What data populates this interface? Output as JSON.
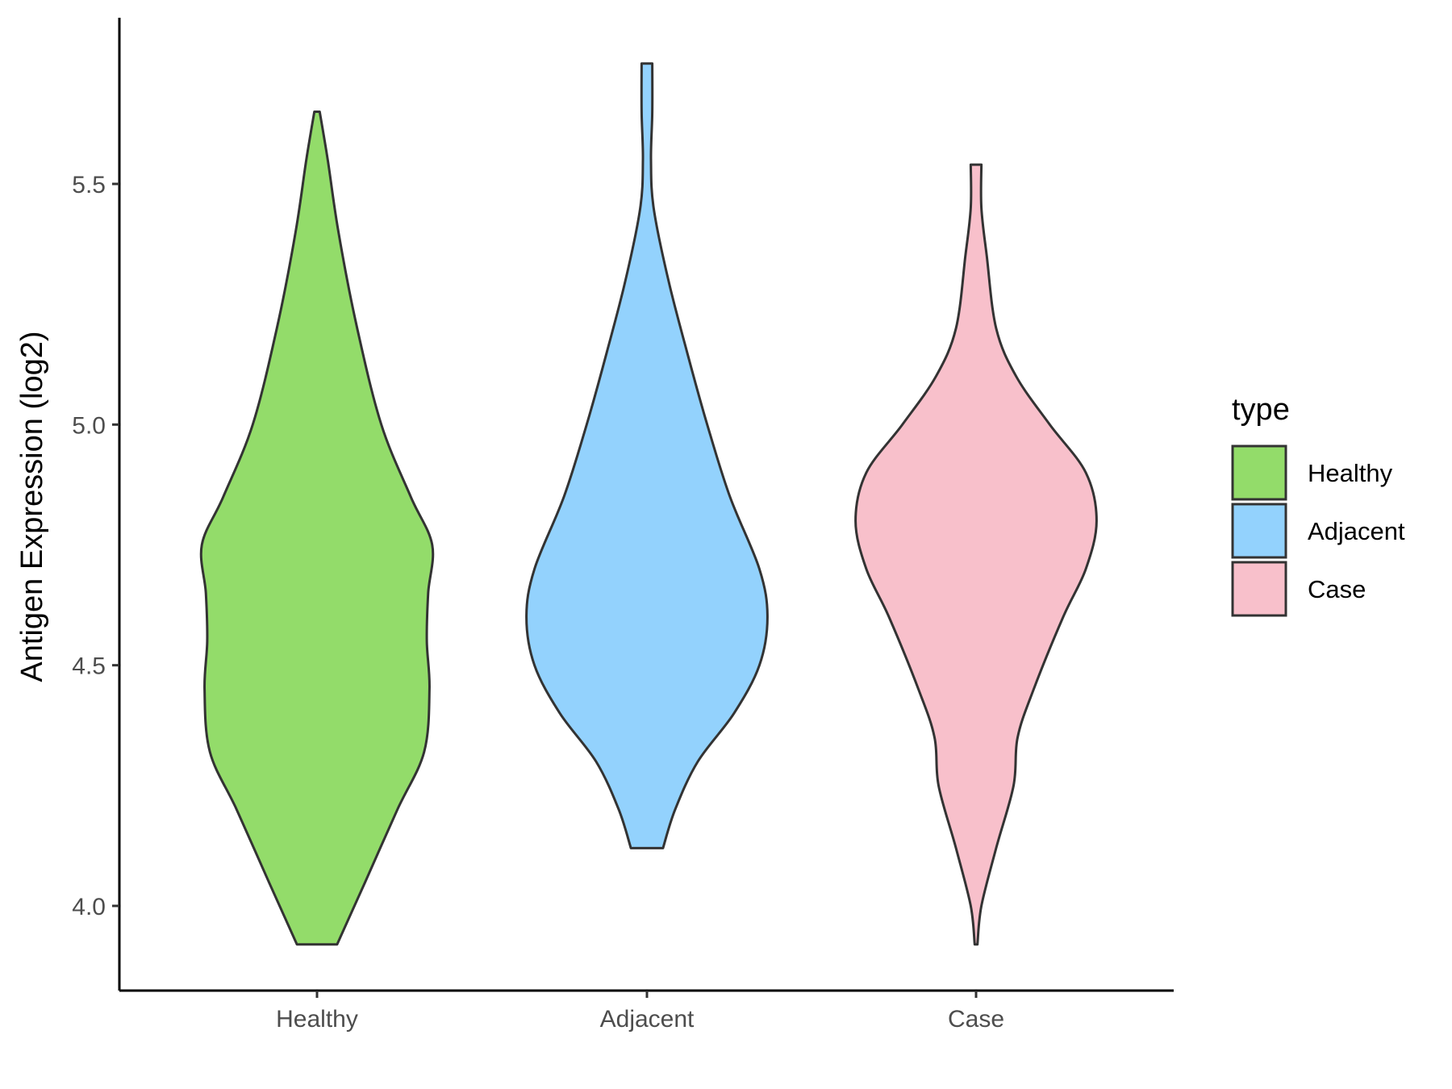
{
  "chart_data": {
    "type": "violin",
    "title": "",
    "xlabel": "",
    "ylabel": "Antigen Expression (log2)",
    "ylim": [
      3.83,
      5.86
    ],
    "yticks": [
      4.0,
      4.5,
      5.0,
      5.5
    ],
    "ytick_labels": [
      "4.0",
      "4.5",
      "5.0",
      "5.5"
    ],
    "categories": [
      "Healthy",
      "Adjacent",
      "Case"
    ],
    "grid": false,
    "legend": {
      "title": "type",
      "position": "right",
      "entries": [
        "Healthy",
        "Adjacent",
        "Case"
      ]
    },
    "colors": {
      "Healthy": "#93dc6a",
      "Adjacent": "#93d2fd",
      "Case": "#f8c0cb",
      "outline": "#333333"
    },
    "series": [
      {
        "category": "Healthy",
        "min": 3.92,
        "max": 5.65,
        "density_profile": [
          [
            3.92,
            0.15
          ],
          [
            4.05,
            0.36
          ],
          [
            4.2,
            0.6
          ],
          [
            4.32,
            0.8
          ],
          [
            4.45,
            0.84
          ],
          [
            4.55,
            0.82
          ],
          [
            4.65,
            0.83
          ],
          [
            4.75,
            0.86
          ],
          [
            4.85,
            0.7
          ],
          [
            5.0,
            0.48
          ],
          [
            5.2,
            0.3
          ],
          [
            5.4,
            0.16
          ],
          [
            5.55,
            0.08
          ],
          [
            5.65,
            0.02
          ]
        ]
      },
      {
        "category": "Adjacent",
        "min": 4.12,
        "max": 5.75,
        "density_profile": [
          [
            4.12,
            0.12
          ],
          [
            4.2,
            0.21
          ],
          [
            4.3,
            0.38
          ],
          [
            4.4,
            0.65
          ],
          [
            4.5,
            0.84
          ],
          [
            4.6,
            0.9
          ],
          [
            4.7,
            0.84
          ],
          [
            4.85,
            0.62
          ],
          [
            5.0,
            0.45
          ],
          [
            5.15,
            0.3
          ],
          [
            5.3,
            0.16
          ],
          [
            5.45,
            0.05
          ],
          [
            5.55,
            0.03
          ],
          [
            5.65,
            0.04
          ],
          [
            5.75,
            0.04
          ]
        ]
      },
      {
        "category": "Case",
        "min": 3.92,
        "max": 5.54,
        "density_profile": [
          [
            3.92,
            0.01
          ],
          [
            4.0,
            0.04
          ],
          [
            4.12,
            0.15
          ],
          [
            4.25,
            0.28
          ],
          [
            4.35,
            0.31
          ],
          [
            4.45,
            0.43
          ],
          [
            4.6,
            0.65
          ],
          [
            4.7,
            0.82
          ],
          [
            4.8,
            0.9
          ],
          [
            4.9,
            0.82
          ],
          [
            5.0,
            0.55
          ],
          [
            5.1,
            0.3
          ],
          [
            5.2,
            0.15
          ],
          [
            5.35,
            0.08
          ],
          [
            5.45,
            0.04
          ],
          [
            5.54,
            0.04
          ]
        ]
      }
    ]
  }
}
